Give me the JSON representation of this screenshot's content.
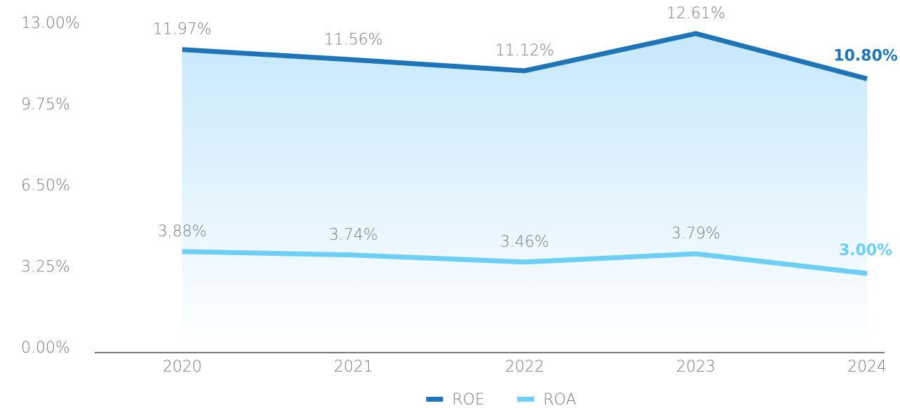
{
  "chart_data": {
    "type": "line",
    "categories": [
      "2020",
      "2021",
      "2022",
      "2023",
      "2024"
    ],
    "series": [
      {
        "name": "ROE",
        "color": "#1f74b8",
        "fill": true,
        "values": [
          11.97,
          11.56,
          11.12,
          12.61,
          10.8
        ],
        "value_labels": [
          "11.97%",
          "11.56%",
          "11.12%",
          "12.61%",
          "10.80%"
        ]
      },
      {
        "name": "ROA",
        "color": "#6dcff6",
        "values": [
          3.88,
          3.74,
          3.46,
          3.79,
          3.0
        ],
        "value_labels": [
          "3.88%",
          "3.74%",
          "3.46%",
          "3.79%",
          "3.00%"
        ]
      }
    ],
    "ylim": [
      0,
      13
    ],
    "yticks": [
      {
        "value": 0,
        "label": "0.00%"
      },
      {
        "value": 3.25,
        "label": "3.25%"
      },
      {
        "value": 6.5,
        "label": "6.50%"
      },
      {
        "value": 9.75,
        "label": "9.75%"
      },
      {
        "value": 13,
        "label": "13.00%"
      }
    ],
    "highlight_last": true,
    "legend": "bottom"
  }
}
